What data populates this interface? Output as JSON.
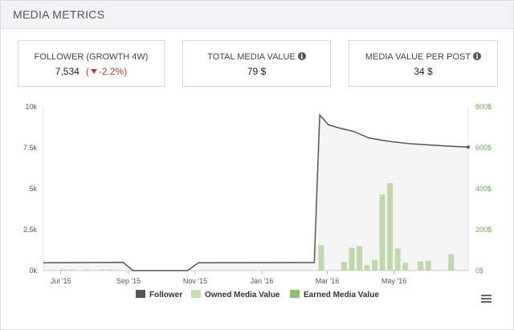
{
  "header": {
    "title": "MEDIA METRICS"
  },
  "stats": [
    {
      "label": "FOLLOWER (GROWTH 4W)",
      "value": "7,534",
      "growth": "-2.2%",
      "growth_icon": "caret-down-icon"
    },
    {
      "label": "TOTAL MEDIA VALUE",
      "value": "79 $",
      "icon": "info-icon"
    },
    {
      "label": "MEDIA VALUE PER POST",
      "value": "34 $",
      "icon": "info-icon"
    }
  ],
  "menu_icon": "hamburger-menu-icon",
  "chart_data": {
    "type": "line",
    "title": "",
    "xlabel": "",
    "ylabel": "",
    "x_range": [
      "2015-06-15",
      "2016-07-08"
    ],
    "x_ticks": [
      {
        "date": "2015-07-01",
        "label": "Jul '15"
      },
      {
        "date": "2015-09-01",
        "label": "Sep '15"
      },
      {
        "date": "2015-11-01",
        "label": "Nov '15"
      },
      {
        "date": "2016-01-01",
        "label": "Jan '16"
      },
      {
        "date": "2016-03-01",
        "label": "Mar '16"
      },
      {
        "date": "2016-05-01",
        "label": "May '16"
      }
    ],
    "y_left": {
      "range": [
        0,
        10000
      ],
      "ticks": [
        {
          "value": 0,
          "label": "0k"
        },
        {
          "value": 2500,
          "label": "2.5k"
        },
        {
          "value": 5000,
          "label": "5k"
        },
        {
          "value": 7500,
          "label": "7.5k"
        },
        {
          "value": 10000,
          "label": "10k"
        }
      ]
    },
    "y_right": {
      "range": [
        0,
        800
      ],
      "ticks": [
        {
          "value": 0,
          "label": "0$"
        },
        {
          "value": 200,
          "label": "200$"
        },
        {
          "value": 400,
          "label": "400$"
        },
        {
          "value": 600,
          "label": "600$"
        },
        {
          "value": 800,
          "label": "800$"
        }
      ]
    },
    "grid": false,
    "legend": "bottom",
    "colors": {
      "follower": "#555555",
      "owned": "#c8e0b4",
      "earned": "#8bbf72"
    },
    "series": [
      {
        "name": "Follower",
        "type": "line",
        "axis": "left",
        "points": [
          [
            "2015-06-15",
            480
          ],
          [
            "2015-08-27",
            500
          ],
          [
            "2015-09-05",
            0
          ],
          [
            "2015-10-25",
            0
          ],
          [
            "2015-11-04",
            480
          ],
          [
            "2016-02-18",
            490
          ],
          [
            "2016-02-23",
            9500
          ],
          [
            "2016-03-02",
            8900
          ],
          [
            "2016-03-12",
            8700
          ],
          [
            "2016-03-25",
            8500
          ],
          [
            "2016-04-08",
            8100
          ],
          [
            "2016-04-25",
            7900
          ],
          [
            "2016-05-15",
            7750
          ],
          [
            "2016-06-15",
            7620
          ],
          [
            "2016-07-08",
            7534
          ]
        ]
      },
      {
        "name": "Owned Media Value",
        "type": "bar",
        "axis": "right",
        "points": [
          [
            "2015-07-03",
            5
          ],
          [
            "2015-07-10",
            5
          ],
          [
            "2015-07-24",
            5
          ],
          [
            "2015-08-07",
            5
          ],
          [
            "2015-08-14",
            5
          ],
          [
            "2016-02-24",
            125
          ],
          [
            "2016-03-16",
            42
          ],
          [
            "2016-03-23",
            112
          ],
          [
            "2016-03-30",
            120
          ],
          [
            "2016-04-06",
            28
          ],
          [
            "2016-04-13",
            52
          ],
          [
            "2016-04-20",
            372
          ],
          [
            "2016-04-27",
            428
          ],
          [
            "2016-05-04",
            108
          ],
          [
            "2016-05-11",
            38
          ],
          [
            "2016-05-25",
            45
          ],
          [
            "2016-06-01",
            48
          ],
          [
            "2016-06-22",
            80
          ]
        ]
      },
      {
        "name": "Earned Media Value",
        "type": "bar",
        "axis": "right",
        "points": []
      }
    ]
  }
}
